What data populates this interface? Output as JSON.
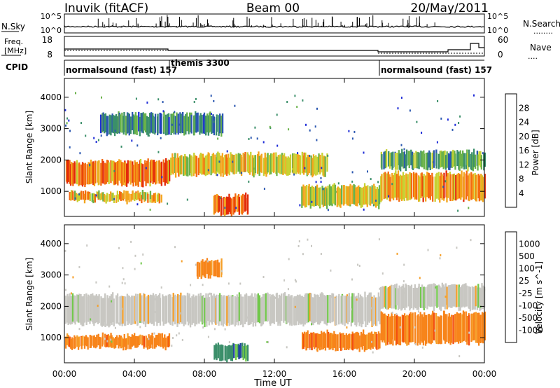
{
  "header": {
    "station": "Inuvik (fitACF)",
    "beam": "Beam 00",
    "date": "20/May/2011"
  },
  "top_strip": {
    "left_label": "N.Sky",
    "left_ticks": [
      "10^5",
      "10^0"
    ],
    "right_ticks": [
      "10^5",
      "10^0"
    ],
    "right_label": "N.Search",
    "right_legend": "........"
  },
  "freq_strip": {
    "left_label_1": "Freq.",
    "left_label_2": "[MHz]",
    "left_ticks": [
      "18",
      "8"
    ],
    "right_ticks": [
      "60",
      "0"
    ],
    "right_label": "Nave",
    "right_legend": "...."
  },
  "cpid": {
    "label": "CPID",
    "modes": [
      {
        "name": "normalsound (fast) 157",
        "start_h": 0
      },
      {
        "name": "themis 3300",
        "start_h": 6
      },
      {
        "name": "normalsound (fast) 157",
        "start_h": 18
      }
    ]
  },
  "colors": {
    "power": [
      "#1e2cd7",
      "#2b57b0",
      "#3b8f6a",
      "#6ab24a",
      "#c7d132",
      "#f3a51c",
      "#f36a10",
      "#e22a0a"
    ],
    "velocity": [
      "#e3140e",
      "#f34e10",
      "#f7841a",
      "#f6a02a",
      "#c8c7c2",
      "#71c84a",
      "#3b8f6a",
      "#24449f",
      "#1f2dc9"
    ]
  },
  "chart_data": [
    {
      "type": "heatmap",
      "panel": "power",
      "ylabel": "Slant Range [km]",
      "yticks": [
        "1000",
        "2000",
        "3000",
        "4000"
      ],
      "ylim": [
        200,
        4600
      ],
      "xlim_hours": [
        0,
        24
      ],
      "colorbar_label": "Power [dB]",
      "colorbar_ticks": [
        "4",
        "8",
        "12",
        "16",
        "20",
        "24",
        "28"
      ],
      "colorbar_range": [
        0,
        32
      ],
      "bands": [
        {
          "t0": 0,
          "t1": 6,
          "r0": 1200,
          "r1": 2000,
          "level": 26
        },
        {
          "t0": 0.2,
          "t1": 5.5,
          "r0": 650,
          "r1": 1000,
          "level": 22
        },
        {
          "t0": 6,
          "t1": 15,
          "r0": 1500,
          "r1": 2200,
          "level": 20
        },
        {
          "t0": 8.5,
          "t1": 10.5,
          "r0": 250,
          "r1": 900,
          "level": 28
        },
        {
          "t0": 13.5,
          "t1": 18,
          "r0": 500,
          "r1": 1200,
          "level": 18
        },
        {
          "t0": 18,
          "t1": 24,
          "r0": 700,
          "r1": 1600,
          "level": 24
        },
        {
          "t0": 18,
          "t1": 24,
          "r0": 1700,
          "r1": 2300,
          "level": 12
        },
        {
          "t0": 2,
          "t1": 9,
          "r0": 2800,
          "r1": 3500,
          "level": 8
        }
      ]
    },
    {
      "type": "heatmap",
      "panel": "velocity",
      "ylabel": "Slant Range [km]",
      "yticks": [
        "1000",
        "2000",
        "3000",
        "4000"
      ],
      "ylim": [
        200,
        4600
      ],
      "xlim_hours": [
        0,
        24
      ],
      "colorbar_label": "Velocity [m s^-1]",
      "colorbar_ticks": [
        "1000",
        "500",
        "100",
        "25",
        "-25",
        "-100",
        "-500",
        "-1000"
      ],
      "bands": [
        {
          "t0": 0,
          "t1": 18,
          "r0": 1400,
          "r1": 2400,
          "level": 0
        },
        {
          "t0": 0,
          "t1": 6,
          "r0": 650,
          "r1": 1100,
          "level": -300
        },
        {
          "t0": 8.5,
          "t1": 10.5,
          "r0": 250,
          "r1": 800,
          "level": 200
        },
        {
          "t0": 13.5,
          "t1": 18,
          "r0": 600,
          "r1": 1200,
          "level": -300
        },
        {
          "t0": 18,
          "t1": 24,
          "r0": 800,
          "r1": 1800,
          "level": -300
        },
        {
          "t0": 18,
          "t1": 24,
          "r0": 1900,
          "r1": 2700,
          "level": 0
        },
        {
          "t0": 7.5,
          "t1": 9,
          "r0": 2900,
          "r1": 3500,
          "level": -100
        }
      ]
    }
  ],
  "x_axis": {
    "label": "Time UT",
    "ticks": [
      "00:00",
      "04:00",
      "08:00",
      "12:00",
      "16:00",
      "20:00",
      "00:00"
    ]
  }
}
